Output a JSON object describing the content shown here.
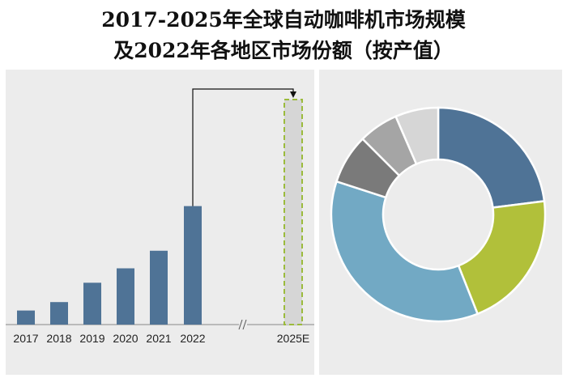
{
  "title_line1": "2017-2025年全球自动咖啡机市场规模",
  "title_line2": "及2022年各地区市场份额（按产值）",
  "colors": {
    "bar": "#4f7396",
    "forecast_fill": "#d6d6d6",
    "forecast_border": "#9bbb3c",
    "panel_bg": "#ececec"
  },
  "chart_data": [
    {
      "type": "bar",
      "title": "2017-2025年全球自动咖啡机市场规模",
      "categories": [
        "2017",
        "2018",
        "2019",
        "2020",
        "2021",
        "2022",
        "2025E"
      ],
      "values": [
        0.4,
        0.64,
        1.19,
        1.6,
        2.1,
        3.37,
        6.4
      ],
      "estimated": [
        false,
        false,
        false,
        false,
        false,
        false,
        true
      ],
      "axis_break": true,
      "grid": false,
      "ylim": [
        0,
        6.4
      ]
    },
    {
      "type": "pie",
      "donut": true,
      "title": "2022年各地区市场份额（按产值）",
      "values": [
        23,
        21,
        36,
        7.5,
        6,
        6.5
      ],
      "colors": [
        "#4f7396",
        "#b1c03a",
        "#72a9c4",
        "#7a7a7a",
        "#a5a5a5",
        "#d6d6d6"
      ],
      "legend": false
    }
  ]
}
